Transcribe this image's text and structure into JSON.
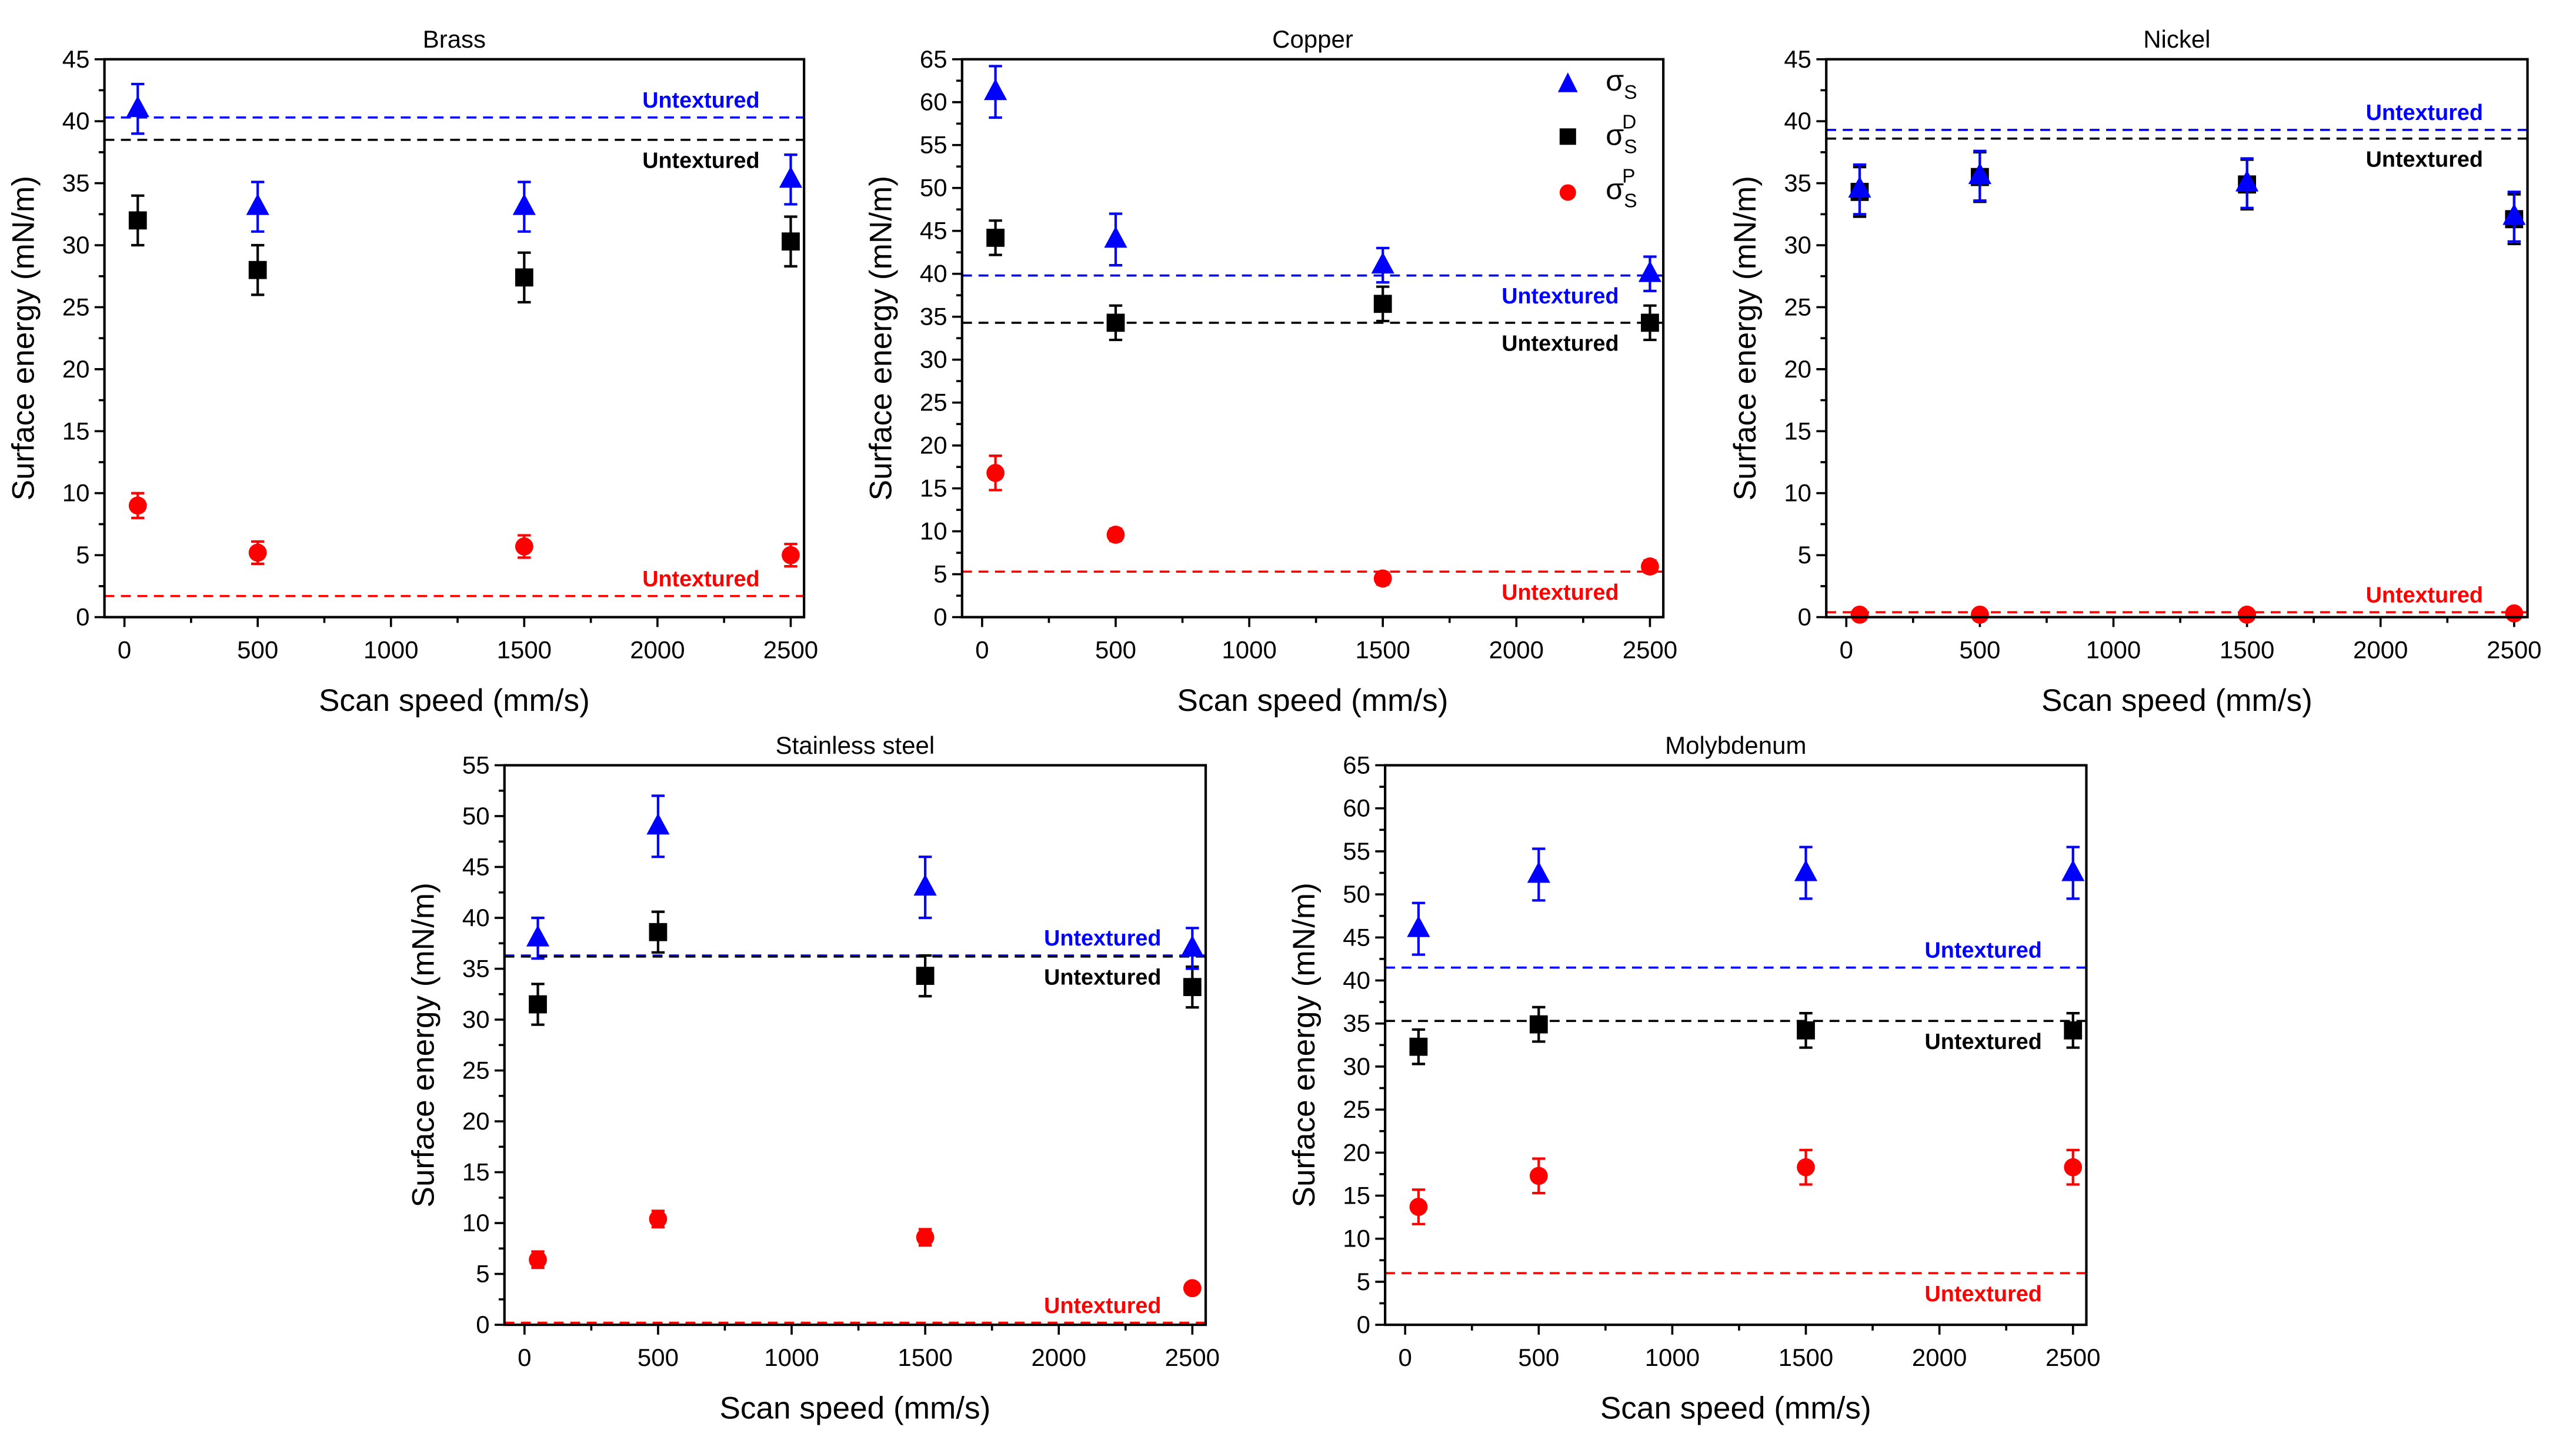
{
  "chart_data": [
    {
      "type": "scatter",
      "title": "Brass",
      "xlabel": "Scan speed (mm/s)",
      "ylabel": "Surface energy (mN/m)",
      "xlim": [
        -75,
        2550
      ],
      "ylim": [
        0,
        45
      ],
      "xticks": [
        0,
        500,
        1000,
        1500,
        2000,
        2500
      ],
      "yticks": [
        0,
        5,
        10,
        15,
        20,
        25,
        30,
        35,
        40,
        45
      ],
      "x": [
        50,
        500,
        1500,
        2500
      ],
      "series": [
        {
          "name": "σS",
          "color": "#0000ff",
          "marker": "triangle",
          "values": [
            41,
            33.1,
            33.1,
            35.3
          ],
          "errors": [
            2,
            2,
            2,
            2
          ]
        },
        {
          "name": "σS D",
          "color": "#000000",
          "marker": "square",
          "values": [
            32,
            28,
            27.4,
            30.3
          ],
          "errors": [
            2,
            2,
            2,
            2
          ]
        },
        {
          "name": "σS P",
          "color": "#ff0000",
          "marker": "circle",
          "values": [
            9,
            5.2,
            5.7,
            5
          ],
          "errors": [
            1,
            0.9,
            0.9,
            0.9
          ]
        }
      ],
      "reference_lines": [
        {
          "label": "Untextured",
          "color": "#0000ff",
          "value": 40.3,
          "label_side": "above"
        },
        {
          "label": "Untextured",
          "color": "#000000",
          "value": 38.5,
          "label_side": "below"
        },
        {
          "label": "Untextured",
          "color": "#ff0000",
          "value": 1.7,
          "label_side": "above"
        }
      ],
      "legend": false
    },
    {
      "type": "scatter",
      "title": "Copper",
      "xlabel": "Scan speed (mm/s)",
      "ylabel": "Surface energy (mN/m)",
      "xlim": [
        -75,
        2550
      ],
      "ylim": [
        0,
        65
      ],
      "xticks": [
        0,
        500,
        1000,
        1500,
        2000,
        2500
      ],
      "yticks": [
        0,
        5,
        10,
        15,
        20,
        25,
        30,
        35,
        40,
        45,
        50,
        55,
        60,
        65
      ],
      "x": [
        50,
        500,
        1500,
        2500
      ],
      "series": [
        {
          "name": "σS",
          "color": "#0000ff",
          "marker": "triangle",
          "values": [
            61.2,
            44,
            41,
            40
          ],
          "errors": [
            3,
            3,
            2,
            2
          ]
        },
        {
          "name": "σS D",
          "color": "#000000",
          "marker": "square",
          "values": [
            44.2,
            34.3,
            36.5,
            34.3
          ],
          "errors": [
            2,
            2,
            2,
            2
          ]
        },
        {
          "name": "σS P",
          "color": "#ff0000",
          "marker": "circle",
          "values": [
            16.8,
            9.6,
            4.5,
            5.9
          ],
          "errors": [
            2,
            0.7,
            0.7,
            0.7
          ]
        }
      ],
      "reference_lines": [
        {
          "label": "Untextured",
          "color": "#0000ff",
          "value": 39.8,
          "label_side": "below"
        },
        {
          "label": "Untextured",
          "color": "#000000",
          "value": 34.3,
          "label_side": "below"
        },
        {
          "label": "Untextured",
          "color": "#ff0000",
          "value": 5.3,
          "label_side": "below"
        }
      ],
      "legend": true,
      "legend_placement": "top-right",
      "legend_entries": [
        {
          "symbol": "σ",
          "sub": "S",
          "sup": ""
        },
        {
          "symbol": "σ",
          "sub": "S",
          "sup": "D"
        },
        {
          "symbol": "σ",
          "sub": "S",
          "sup": "P"
        }
      ]
    },
    {
      "type": "scatter",
      "title": "Nickel",
      "xlabel": "Scan speed (mm/s)",
      "ylabel": "Surface energy (mN/m)",
      "xlim": [
        -75,
        2550
      ],
      "ylim": [
        0,
        45
      ],
      "xticks": [
        0,
        500,
        1000,
        1500,
        2000,
        2500
      ],
      "yticks": [
        0,
        5,
        10,
        15,
        20,
        25,
        30,
        35,
        40,
        45
      ],
      "x": [
        50,
        500,
        1500,
        2500
      ],
      "series": [
        {
          "name": "σS",
          "color": "#0000ff",
          "marker": "triangle",
          "values": [
            34.5,
            35.6,
            35,
            32.3
          ],
          "errors": [
            2,
            2,
            2,
            2
          ]
        },
        {
          "name": "σS D",
          "color": "#000000",
          "marker": "square",
          "values": [
            34.3,
            35.5,
            34.9,
            32.1
          ],
          "errors": [
            2,
            2,
            2,
            2
          ]
        },
        {
          "name": "σS P",
          "color": "#ff0000",
          "marker": "circle",
          "values": [
            0.2,
            0.2,
            0.2,
            0.3
          ],
          "errors": [
            0.1,
            0.1,
            0.1,
            0.1
          ]
        }
      ],
      "reference_lines": [
        {
          "label": "Untextured",
          "color": "#0000ff",
          "value": 39.3,
          "label_side": "above"
        },
        {
          "label": "Untextured",
          "color": "#000000",
          "value": 38.6,
          "label_side": "below"
        },
        {
          "label": "Untextured",
          "color": "#ff0000",
          "value": 0.4,
          "label_side": "above"
        }
      ],
      "legend": false
    },
    {
      "type": "scatter",
      "title": "Stainless steel",
      "xlabel": "Scan speed (mm/s)",
      "ylabel": "Surface energy (mN/m)",
      "xlim": [
        -75,
        2550
      ],
      "ylim": [
        0,
        55
      ],
      "xticks": [
        0,
        500,
        1000,
        1500,
        2000,
        2500
      ],
      "yticks": [
        0,
        5,
        10,
        15,
        20,
        25,
        30,
        35,
        40,
        45,
        50,
        55
      ],
      "x": [
        50,
        500,
        1500,
        2500
      ],
      "series": [
        {
          "name": "σS",
          "color": "#0000ff",
          "marker": "triangle",
          "values": [
            38,
            49,
            43,
            37
          ],
          "errors": [
            2,
            3,
            3,
            2
          ]
        },
        {
          "name": "σS D",
          "color": "#000000",
          "marker": "square",
          "values": [
            31.5,
            38.6,
            34.3,
            33.2
          ],
          "errors": [
            2,
            2,
            2,
            2
          ]
        },
        {
          "name": "σS P",
          "color": "#ff0000",
          "marker": "circle",
          "values": [
            6.4,
            10.4,
            8.6,
            3.6
          ],
          "errors": [
            0.8,
            0.8,
            0.8,
            0.3
          ]
        }
      ],
      "reference_lines": [
        {
          "label": "Untextured",
          "color": "#0000ff",
          "value": 36.3,
          "label_side": "above"
        },
        {
          "label": "Untextured",
          "color": "#000000",
          "value": 36.2,
          "label_side": "below"
        },
        {
          "label": "Untextured",
          "color": "#ff0000",
          "value": 0.2,
          "label_side": "above"
        }
      ],
      "legend": false
    },
    {
      "type": "scatter",
      "title": "Molybdenum",
      "xlabel": "Scan speed (mm/s)",
      "ylabel": "Surface energy (mN/m)",
      "xlim": [
        -75,
        2550
      ],
      "ylim": [
        0,
        65
      ],
      "xticks": [
        0,
        500,
        1000,
        1500,
        2000,
        2500
      ],
      "yticks": [
        0,
        5,
        10,
        15,
        20,
        25,
        30,
        35,
        40,
        45,
        50,
        55,
        60,
        65
      ],
      "x": [
        50,
        500,
        1500,
        2500
      ],
      "series": [
        {
          "name": "σS",
          "color": "#0000ff",
          "marker": "triangle",
          "values": [
            46,
            52.3,
            52.5,
            52.5
          ],
          "errors": [
            3,
            3,
            3,
            3
          ]
        },
        {
          "name": "σS D",
          "color": "#000000",
          "marker": "square",
          "values": [
            32.3,
            34.9,
            34.2,
            34.2
          ],
          "errors": [
            2,
            2,
            2,
            2
          ]
        },
        {
          "name": "σS P",
          "color": "#ff0000",
          "marker": "circle",
          "values": [
            13.7,
            17.3,
            18.3,
            18.3
          ],
          "errors": [
            2,
            2,
            2,
            2
          ]
        }
      ],
      "reference_lines": [
        {
          "label": "Untextured",
          "color": "#0000ff",
          "value": 41.5,
          "label_side": "above"
        },
        {
          "label": "Untextured",
          "color": "#000000",
          "value": 35.3,
          "label_side": "below"
        },
        {
          "label": "Untextured",
          "color": "#ff0000",
          "value": 6,
          "label_side": "below"
        }
      ],
      "legend": false
    }
  ]
}
